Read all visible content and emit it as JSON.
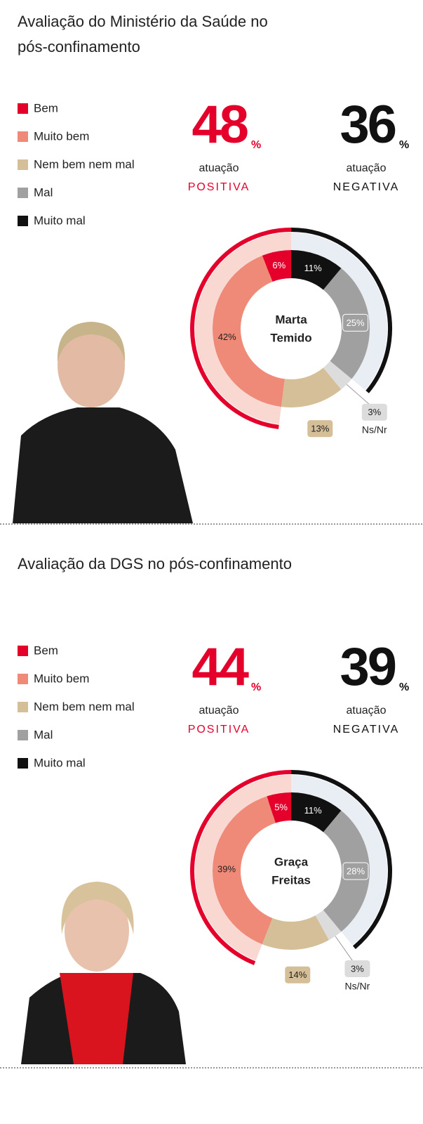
{
  "chart_data": [
    {
      "type": "pie",
      "title": [
        "Avaliação do Ministério da Saúde no",
        "pós-confinamento"
      ],
      "categories": [
        "Bem",
        "Muito bem",
        "Nem bem nem mal",
        "Ns/Nr",
        "Mal",
        "Muito mal"
      ],
      "in_legend": [
        true,
        true,
        true,
        false,
        true,
        true
      ],
      "values": [
        6,
        42,
        13,
        3,
        25,
        11
      ],
      "value_labels": [
        "6%",
        "42%",
        "13%",
        "3%",
        "25%",
        "11%"
      ],
      "colors": [
        "#e4002b",
        "#f08a78",
        "#d4bf98",
        "#dcdcdc",
        "#a0a0a0",
        "#111111"
      ],
      "positive": {
        "value": 48,
        "unit": "%",
        "line1": "atuação",
        "line2": "POSITIVA",
        "color": "#e4002b"
      },
      "negative": {
        "value": 36,
        "unit": "%",
        "line1": "atuação",
        "line2": "NEGATIVA",
        "color": "#111111"
      },
      "center_label": [
        "Marta",
        "Temido"
      ]
    },
    {
      "type": "pie",
      "title": [
        "Avaliação da DGS no pós-confinamento"
      ],
      "categories": [
        "Bem",
        "Muito bem",
        "Nem bem nem mal",
        "Ns/Nr",
        "Mal",
        "Muito mal"
      ],
      "in_legend": [
        true,
        true,
        true,
        false,
        true,
        true
      ],
      "values": [
        5,
        39,
        14,
        3,
        28,
        11
      ],
      "value_labels": [
        "5%",
        "39%",
        "14%",
        "3%",
        "28%",
        "11%"
      ],
      "colors": [
        "#e4002b",
        "#f08a78",
        "#d4bf98",
        "#dcdcdc",
        "#a0a0a0",
        "#111111"
      ],
      "positive": {
        "value": 44,
        "unit": "%",
        "line1": "atuação",
        "line2": "POSITIVA",
        "color": "#e4002b"
      },
      "negative": {
        "value": 39,
        "unit": "%",
        "line1": "atuação",
        "line2": "NEGATIVA",
        "color": "#111111"
      },
      "center_label": [
        "Graça",
        "Freitas"
      ]
    }
  ]
}
